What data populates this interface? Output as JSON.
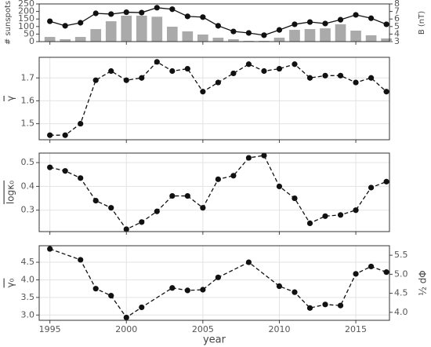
{
  "chart_data": [
    {
      "type": "combo",
      "ylabel": "# sunspots",
      "y2label": "B (nT)",
      "x": [
        1995,
        1996,
        1997,
        1998,
        1999,
        2000,
        2001,
        2002,
        2003,
        2004,
        2005,
        2006,
        2007,
        2008,
        2009,
        2010,
        2011,
        2012,
        2013,
        2014,
        2015,
        2016,
        2017
      ],
      "series": [
        {
          "type": "bar",
          "color": "#aaaaaa",
          "axis": "y",
          "values": [
            31,
            16,
            31,
            83,
            135,
            172,
            172,
            165,
            99,
            68,
            47,
            26,
            16,
            5,
            5,
            26,
            78,
            83,
            88,
            115,
            73,
            42,
            21
          ]
        },
        {
          "type": "line",
          "color": "#111111",
          "axis": "y2",
          "values": [
            5.7,
            5.1,
            5.5,
            6.75,
            6.65,
            6.9,
            6.85,
            7.5,
            7.3,
            6.35,
            6.25,
            5.1,
            4.35,
            4.15,
            3.85,
            4.55,
            5.3,
            5.6,
            5.4,
            5.9,
            6.55,
            6.1,
            5.3
          ]
        }
      ],
      "xlim": [
        1994.3,
        2017.2
      ],
      "xticks": [
        1995,
        2000,
        2005,
        2010,
        2015
      ],
      "ylim": [
        0,
        250
      ],
      "yticks": [
        0,
        50,
        100,
        150,
        200,
        250
      ],
      "y2lim": [
        3,
        8
      ],
      "y2ticks": [
        3,
        4,
        5,
        6,
        7,
        8
      ],
      "grid": false
    },
    {
      "type": "line",
      "ylabel": "γ",
      "x": [
        1995,
        1996,
        1997,
        1998,
        1999,
        2000,
        2001,
        2002,
        2003,
        2004,
        2005,
        2006,
        2007,
        2008,
        2009,
        2010,
        2011,
        2012,
        2013,
        2014,
        2015,
        2016,
        2017
      ],
      "series": [
        {
          "type": "line",
          "dashed": true,
          "color": "#111111",
          "axis": "y",
          "values": [
            1.45,
            1.45,
            1.5,
            1.69,
            1.73,
            1.69,
            1.7,
            1.77,
            1.73,
            1.74,
            1.64,
            1.68,
            1.72,
            1.76,
            1.73,
            1.74,
            1.76,
            1.7,
            1.71,
            1.71,
            1.68,
            1.7,
            1.64
          ]
        }
      ],
      "xlim": [
        1994.3,
        2017.2
      ],
      "xticks": [
        1995,
        2000,
        2005,
        2010,
        2015
      ],
      "ylim": [
        1.43,
        1.79
      ],
      "yticks": [
        1.5,
        1.6,
        1.7
      ],
      "grid": true
    },
    {
      "type": "line",
      "ylabel": "logκ₀",
      "x": [
        1995,
        1996,
        1997,
        1998,
        1999,
        2000,
        2001,
        2002,
        2003,
        2004,
        2005,
        2006,
        2007,
        2008,
        2009,
        2010,
        2011,
        2012,
        2013,
        2014,
        2015,
        2016,
        2017
      ],
      "series": [
        {
          "type": "line",
          "dashed": true,
          "color": "#111111",
          "axis": "y",
          "values": [
            0.48,
            0.465,
            0.435,
            0.34,
            0.31,
            0.22,
            0.25,
            0.295,
            0.36,
            0.36,
            0.31,
            0.43,
            0.445,
            0.52,
            0.53,
            0.4,
            0.35,
            0.245,
            0.275,
            0.28,
            0.3,
            0.395,
            0.42
          ]
        }
      ],
      "xlim": [
        1994.3,
        2017.2
      ],
      "xticks": [
        1995,
        2000,
        2005,
        2010,
        2015
      ],
      "ylim": [
        0.21,
        0.54
      ],
      "yticks": [
        0.3,
        0.4,
        0.5
      ],
      "grid": true
    },
    {
      "type": "line",
      "ylabel": "γ₀",
      "y2label": "½ dΦ",
      "xlabel": "year",
      "x": [
        1995,
        1997,
        1998,
        1999,
        2000,
        2001,
        2003,
        2004,
        2005,
        2006,
        2008,
        2010,
        2011,
        2012,
        2013,
        2014,
        2015,
        2016,
        2017
      ],
      "series": [
        {
          "type": "line",
          "dashed": true,
          "color": "#111111",
          "axis": "y",
          "values": [
            4.88,
            4.57,
            3.75,
            3.55,
            2.93,
            3.22,
            3.77,
            3.7,
            3.72,
            4.07,
            4.5,
            3.82,
            3.65,
            3.2,
            3.3,
            3.27,
            4.17,
            4.38,
            4.22
          ]
        }
      ],
      "xlim": [
        1994.3,
        2017.2
      ],
      "xticks": [
        1995,
        2000,
        2005,
        2010,
        2015
      ],
      "ylim": [
        2.85,
        4.97
      ],
      "yticks": [
        {
          "value": 3,
          "label": "3.0"
        },
        3.5,
        {
          "value": 4,
          "label": "4.0"
        },
        4.5
      ],
      "y2lim": [
        3.79,
        5.75
      ],
      "y2ticks": [
        {
          "value": 4,
          "label": "4.0"
        },
        4.5,
        {
          "value": 5,
          "label": "5.0"
        },
        5.5
      ],
      "grid": true
    }
  ]
}
